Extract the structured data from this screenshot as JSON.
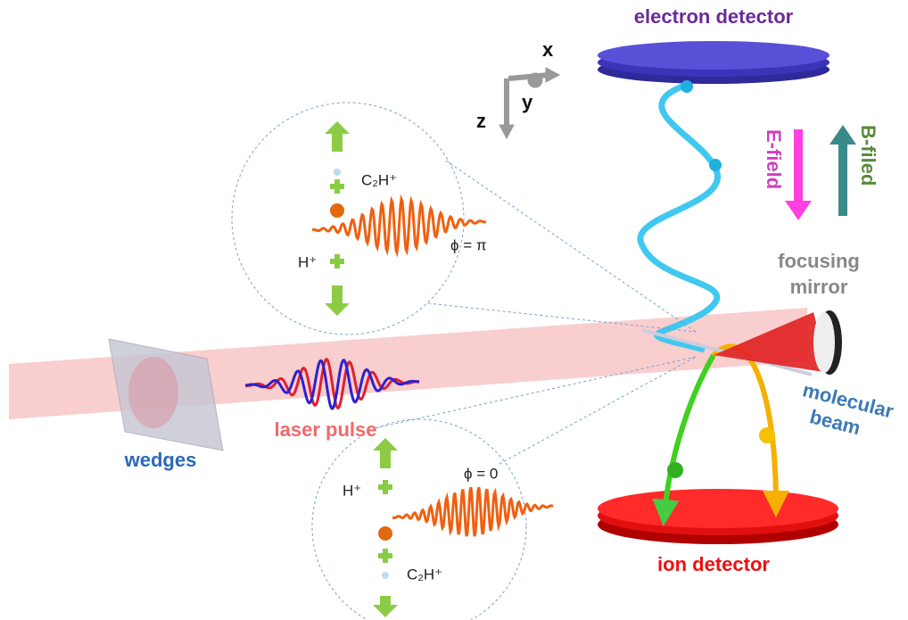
{
  "labels": {
    "electron_detector": "electron detector",
    "ion_detector": "ion detector",
    "e_field": "E-field",
    "b_field": "B-filed",
    "focusing_mirror": [
      "focusing",
      "mirror"
    ],
    "molecular_beam": [
      "molecular",
      "beam"
    ],
    "laser_pulse": "laser pulse",
    "wedges": "wedges"
  },
  "axes": {
    "x": "x",
    "y": "y",
    "z": "z"
  },
  "insets": [
    {
      "upper_ion": "C₂H⁺",
      "lower_ion": "H⁺",
      "phase": "ϕ = π"
    },
    {
      "upper_ion": "H⁺",
      "lower_ion": "C₂H⁺",
      "phase": "ϕ = 0"
    }
  ]
}
